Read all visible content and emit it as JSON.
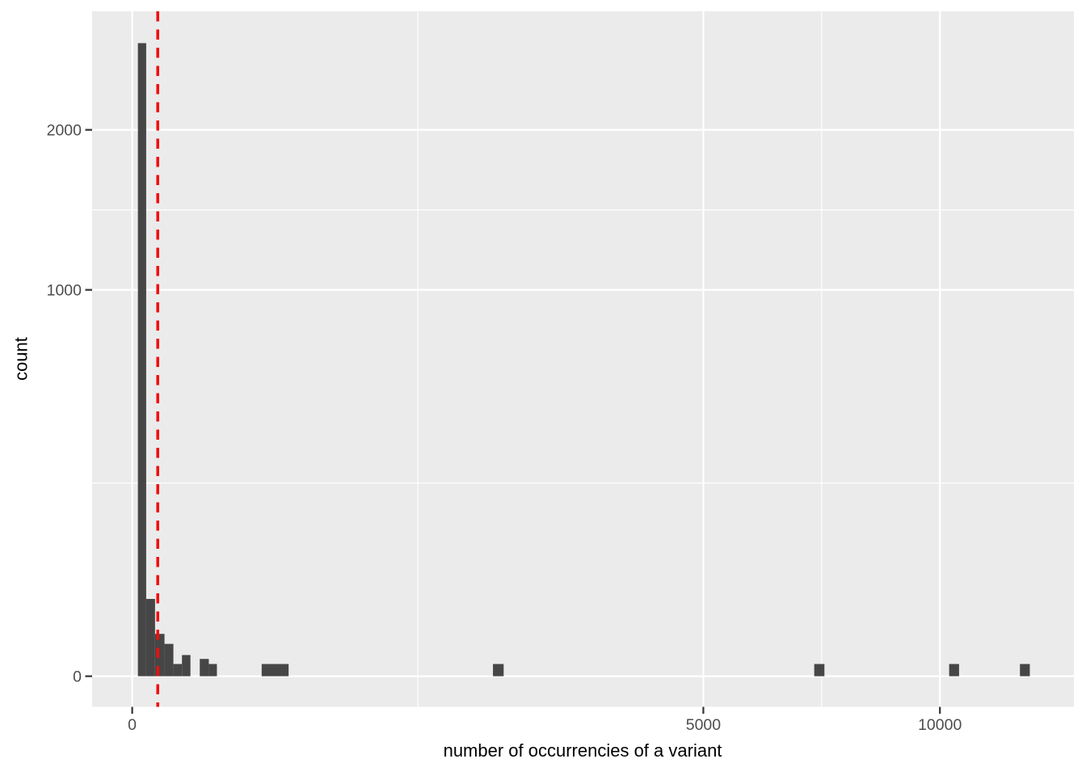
{
  "chart_data": {
    "type": "bar",
    "subtype": "histogram",
    "title": "",
    "xlabel": "number of occurrencies of a variant",
    "ylabel": "count",
    "x_scale": "sqrt",
    "y_scale": "sqrt",
    "grid": "on",
    "legend_position": "none",
    "x_ticks": [
      {
        "value": 0,
        "label": "0"
      },
      {
        "value": 5000,
        "label": "5000"
      },
      {
        "value": 10000,
        "label": "10000"
      }
    ],
    "y_ticks": [
      {
        "value": 0,
        "label": "0"
      },
      {
        "value": 1000,
        "label": "1000"
      },
      {
        "value": 2000,
        "label": "2000"
      }
    ],
    "x_minor_breaks": [
      1250,
      7286
    ],
    "y_minor_breaks": [
      250,
      1457
    ],
    "x_axis_range": [
      0,
      13500
    ],
    "y_axis_range": [
      0,
      2960
    ],
    "bars": [
      {
        "x0": 0.5,
        "x1": 3,
        "count": 2685
      },
      {
        "x0": 3,
        "x1": 8,
        "count": 40
      },
      {
        "x0": 8,
        "x1": 16,
        "count": 12
      },
      {
        "x0": 16,
        "x1": 26,
        "count": 7
      },
      {
        "x0": 26,
        "x1": 38,
        "count": 1
      },
      {
        "x0": 38,
        "x1": 52,
        "count": 3
      },
      {
        "x0": 70,
        "x1": 90,
        "count": 2
      },
      {
        "x0": 90,
        "x1": 110,
        "count": 1
      },
      {
        "x0": 257,
        "x1": 375,
        "count": 1
      },
      {
        "x0": 1995,
        "x1": 2115,
        "count": 1
      },
      {
        "x0": 7130,
        "x1": 7345,
        "count": 1
      },
      {
        "x0": 10230,
        "x1": 10480,
        "count": 1
      },
      {
        "x0": 12080,
        "x1": 12350,
        "count": 1
      }
    ],
    "vline": {
      "x": 10,
      "style": "dashed",
      "color": "#F20D0D"
    },
    "colors": {
      "panel_bg": "#EBEBEB",
      "bar": "#464646",
      "grid": "#FFFFFF",
      "tick_label": "#4D4D4D",
      "tick_mark": "#333333",
      "axis_title": "#000000",
      "figure_bg": "#FFFFFF"
    }
  }
}
